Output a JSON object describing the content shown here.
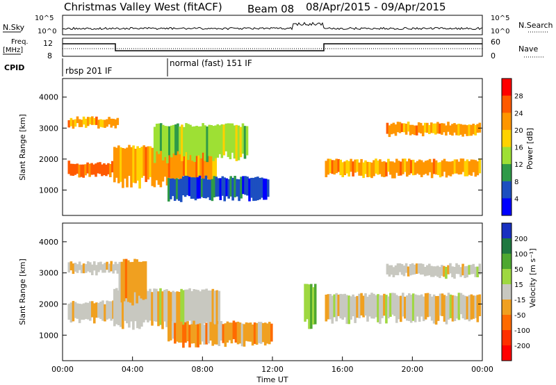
{
  "header": {
    "station": "Christmas Valley West (fitACF)",
    "beam": "Beam 08",
    "daterange": "08/Apr/2015 - 09/Apr/2015"
  },
  "top_panel": {
    "nsky_label": "N.Sky",
    "nsearch_label": "N.Search",
    "y_ticks": [
      "10^5",
      "10^0"
    ],
    "freq_label": "Freq.",
    "freq_unit": "[MHz]",
    "freq_ticks": [
      "12",
      "8"
    ],
    "nave_label": "Nave",
    "nave_ticks": [
      "60",
      "0"
    ],
    "cpid_label": "CPID",
    "cpid_segments": [
      {
        "label": "rbsp 201 IF",
        "start_hour": 0
      },
      {
        "label": "normal (fast) 151 IF",
        "start_hour": 6
      }
    ]
  },
  "chart_data": [
    {
      "type": "heatmap",
      "title": "",
      "xlabel": "",
      "ylabel": "Slant Range [km]",
      "colorbar_label": "Power [dB]",
      "colorbar_ticks": [
        "28",
        "24",
        "20",
        "16",
        "12",
        "8",
        "4"
      ],
      "colorbar_colors": [
        "#ff0000",
        "#ff5a00",
        "#ff9600",
        "#ffd200",
        "#9ee034",
        "#2f9a48",
        "#1c4fc0",
        "#0000ff"
      ],
      "y_ticks": [
        1000,
        2000,
        3000,
        4000
      ],
      "ylim": [
        180,
        4600
      ],
      "xlim_hours": [
        0,
        24
      ],
      "bands": [
        {
          "name": "",
          "x0": 0.3,
          "x1": 2.9,
          "y0": 1480,
          "y1": 1880,
          "value_db": 24
        },
        {
          "name": "",
          "x0": 0.3,
          "x1": 3.2,
          "y0": 3050,
          "y1": 3320,
          "value_db": 22
        },
        {
          "name": "",
          "x0": 2.9,
          "x1": 8.8,
          "y0": 1200,
          "y1": 2400,
          "value_db": 22
        },
        {
          "name": "",
          "x0": 5.2,
          "x1": 10.6,
          "y0": 2000,
          "y1": 3100,
          "value_db": 12
        },
        {
          "name": "",
          "x0": 6.0,
          "x1": 11.8,
          "y0": 700,
          "y1": 1400,
          "value_db": 6
        },
        {
          "name": "",
          "x0": 15.0,
          "x1": 23.9,
          "y0": 1450,
          "y1": 1950,
          "value_db": 22
        },
        {
          "name": "",
          "x0": 18.5,
          "x1": 23.9,
          "y0": 2800,
          "y1": 3150,
          "value_db": 20
        }
      ]
    },
    {
      "type": "heatmap",
      "title": "",
      "xlabel": "Time UT",
      "ylabel": "Slant Range [km]",
      "colorbar_label": "Velocity [m s⁻¹]",
      "colorbar_ticks": [
        "200",
        "100",
        "50",
        "15",
        "-15",
        "-50",
        "-100",
        "-200"
      ],
      "colorbar_colors": [
        "#1830c0",
        "#1e7840",
        "#4ea830",
        "#9ed840",
        "#c8c8c0",
        "#f0a020",
        "#ff6a00",
        "#ff3000",
        "#ff0000"
      ],
      "x_ticks": [
        "00:00",
        "04:00",
        "08:00",
        "12:00",
        "16:00",
        "20:00",
        "00:00"
      ],
      "y_ticks": [
        1000,
        2000,
        3000,
        4000
      ],
      "ylim": [
        180,
        4600
      ],
      "xlim_hours": [
        0,
        24
      ],
      "bands": [
        {
          "name": "",
          "x0": 0.3,
          "x1": 3.2,
          "y0": 1450,
          "y1": 2050,
          "value_ms": 0
        },
        {
          "name": "",
          "x0": 0.3,
          "x1": 3.2,
          "y0": 3000,
          "y1": 3320,
          "value_ms": 0
        },
        {
          "name": "",
          "x0": 2.9,
          "x1": 9.0,
          "y0": 1250,
          "y1": 2450,
          "value_ms": 0
        },
        {
          "name": "",
          "x0": 3.2,
          "x1": 4.8,
          "y0": 2100,
          "y1": 3400,
          "value_ms": -40
        },
        {
          "name": "",
          "x0": 6.0,
          "x1": 12.0,
          "y0": 700,
          "y1": 1400,
          "value_ms": -40
        },
        {
          "name": "",
          "x0": 13.8,
          "x1": 14.5,
          "y0": 1200,
          "y1": 2600,
          "value_ms": 30
        },
        {
          "name": "",
          "x0": 15.0,
          "x1": 23.9,
          "y0": 1450,
          "y1": 2300,
          "value_ms": 0
        },
        {
          "name": "",
          "x0": 18.5,
          "x1": 23.9,
          "y0": 2900,
          "y1": 3250,
          "value_ms": 0
        }
      ]
    }
  ]
}
